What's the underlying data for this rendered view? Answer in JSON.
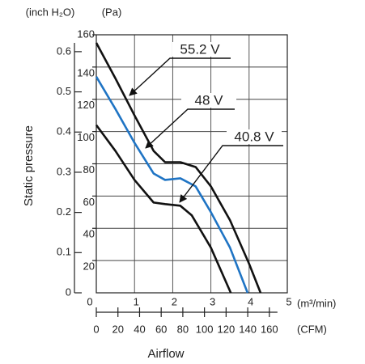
{
  "chart_data": {
    "type": "line",
    "y_unit_label": "(Pa)",
    "y2_unit_label": "(inch H₂O)",
    "x_unit_label": "(m³/min)",
    "x2_unit_label": "(CFM)",
    "y_label": "Static pressure",
    "x_label": "Airflow",
    "xlim": [
      0,
      5
    ],
    "xticks": [
      0,
      1,
      2,
      3,
      4,
      5
    ],
    "x2lim": [
      0,
      176.6
    ],
    "x2ticks": [
      0,
      20,
      40,
      60,
      80,
      100,
      120,
      140,
      160
    ],
    "ylim": [
      0,
      160
    ],
    "yticks": [
      20,
      40,
      60,
      80,
      100,
      120,
      140,
      160
    ],
    "y2lim": [
      0,
      0.642
    ],
    "y2ticks": [
      0,
      0.1,
      0.2,
      0.3,
      0.4,
      0.5,
      0.6
    ],
    "grid": true,
    "series": [
      {
        "name": "55.2 V",
        "color": "#111111",
        "x": [
          0,
          0.5,
          1,
          1.5,
          1.8,
          2.2,
          2.6,
          3,
          3.5,
          4,
          4.3
        ],
        "values": [
          155,
          133,
          110,
          88,
          81,
          81,
          78,
          66,
          45,
          18,
          0
        ]
      },
      {
        "name": "48 V",
        "color": "#1f74c4",
        "x": [
          0,
          0.5,
          1,
          1.5,
          1.8,
          2.2,
          2.6,
          3,
          3.5,
          3.96
        ],
        "values": [
          134,
          114,
          93,
          74,
          70,
          71,
          66,
          50,
          28,
          0
        ]
      },
      {
        "name": "40.8 V",
        "color": "#111111",
        "x": [
          0,
          0.5,
          1,
          1.5,
          1.8,
          2.2,
          2.5,
          3,
          3.52
        ],
        "values": [
          104,
          88,
          70,
          56,
          55,
          54,
          48,
          28,
          0
        ]
      }
    ]
  }
}
